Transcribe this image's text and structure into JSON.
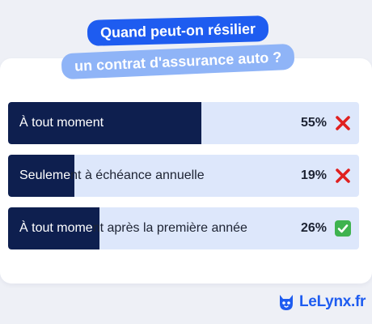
{
  "title": {
    "line1": "Quand peut-on résilier",
    "line2": "un contrat d'assurance auto ?"
  },
  "options": [
    {
      "label": "À tout moment",
      "percent_text": "55%",
      "percent": 55,
      "mark": "cross-icon"
    },
    {
      "label": "Seulement à échéance annuelle",
      "percent_text": "19%",
      "percent": 19,
      "mark": "cross-icon"
    },
    {
      "label": "À tout moment après la première année",
      "percent_text": "26%",
      "percent": 26,
      "mark": "check-icon"
    }
  ],
  "brand": {
    "logo_text": "LeLynx.fr"
  },
  "colors": {
    "background": "#eef0f6",
    "card": "#ffffff",
    "title_primary": "#1e5cf0",
    "title_secondary": "#8fb4f7",
    "bar_track": "#dde7fb",
    "bar_fill": "#0e1f4f",
    "wrong": "#e02020",
    "right": "#3fb34f",
    "brand": "#1e5cf0"
  }
}
